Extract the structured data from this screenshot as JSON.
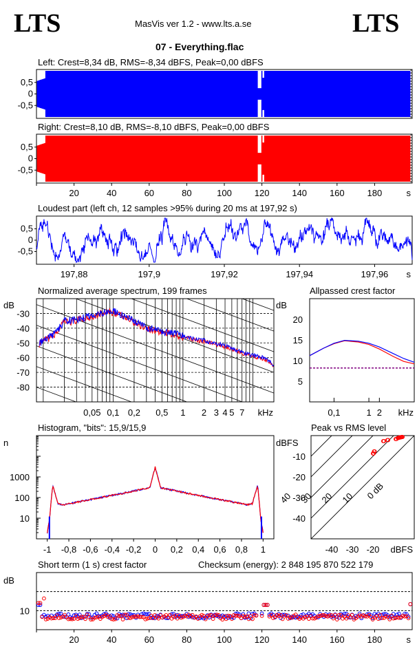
{
  "header": {
    "logo_left": "LTS",
    "logo_right": "LTS",
    "app_title": "MasVis ver 1.2 - www.lts.a.se",
    "file_title": "07 - Everything.flac"
  },
  "colors": {
    "left": "#0000ff",
    "right": "#ff0000",
    "purple": "#800080"
  },
  "left_channel": {
    "title": "Left: Crest=8,34 dB, RMS=-8,34 dBFS, Peak=0,00 dBFS",
    "y_ticks": [
      "0,5",
      "0",
      "-0,5"
    ],
    "chart_data": {
      "type": "area",
      "x_range": [
        0,
        200
      ],
      "ylim": [
        -1,
        1
      ],
      "amplitude": 1.0,
      "fade_in_end": 5,
      "gap": [
        117.5,
        120
      ],
      "end": 199
    }
  },
  "right_channel": {
    "title": "Right: Crest=8,10 dB, RMS=-8,10 dBFS, Peak=0,00 dBFS",
    "y_ticks": [
      "0,5",
      "0",
      "-0,5"
    ],
    "x_ticks": [
      "20",
      "40",
      "60",
      "80",
      "100",
      "120",
      "140",
      "160",
      "180"
    ],
    "x_unit": "s",
    "chart_data": {
      "type": "area",
      "x_range": [
        0,
        200
      ],
      "ylim": [
        -1,
        1
      ],
      "amplitude": 1.0,
      "fade_in_end": 5,
      "gap": [
        117.5,
        120
      ],
      "end": 199
    }
  },
  "loudest": {
    "title": "Loudest part (left  ch, 12 samples >95% during 20 ms at 197,92 s)",
    "y_ticks": [
      "0,5",
      "0",
      "-0,5"
    ],
    "x_ticks": [
      "197,88",
      "197,9",
      "197,92",
      "197,94",
      "197,96"
    ],
    "x_unit": "s",
    "chart_data": {
      "type": "line",
      "x_range": [
        197.87,
        197.97
      ],
      "ylim": [
        -1,
        1
      ]
    }
  },
  "spectrum": {
    "title": "Normalized average spectrum, 199 frames",
    "y_unit": "dB",
    "y_ticks": [
      "-30",
      "-40",
      "-50",
      "-60",
      "-70",
      "-80"
    ],
    "x_ticks": [
      "0,05",
      "0,1",
      "0,2",
      "0,5",
      "1",
      "2",
      "3",
      "4",
      "5",
      "7"
    ],
    "x_unit": "kHz",
    "chart_data": {
      "type": "line",
      "xscale": "log",
      "ylim": [
        -90,
        -20
      ],
      "series": [
        {
          "x": [
            0.008,
            0.015,
            0.02,
            0.03,
            0.05,
            0.07,
            0.1,
            0.15,
            0.2,
            0.3,
            0.5,
            0.7,
            1,
            1.5,
            2,
            3,
            5,
            7,
            10,
            15,
            20
          ],
          "y": [
            -52,
            -44,
            -36,
            -35,
            -32,
            -30,
            -29,
            -33,
            -36,
            -40,
            -43,
            -44,
            -46,
            -48,
            -49,
            -51,
            -54,
            -57,
            -59,
            -61,
            -66
          ]
        }
      ]
    }
  },
  "allpass": {
    "title": "Allpassed crest factor",
    "y_unit": "dB",
    "y_ticks": [
      "20",
      "15",
      "10",
      "5"
    ],
    "x_ticks": [
      "0,1",
      "1",
      "2"
    ],
    "x_unit": "kHz",
    "chart_data": {
      "type": "line",
      "xscale": "log",
      "ylim": [
        0,
        25
      ],
      "x": [
        0.02,
        0.05,
        0.1,
        0.2,
        0.5,
        1,
        2,
        5,
        10,
        20
      ],
      "series": [
        {
          "name": "",
          "values": [
            11.2,
            13,
            14.1,
            14.8,
            14.5,
            13.9,
            12.8,
            11,
            9.8,
            9.2
          ]
        },
        {
          "name": "",
          "values": [
            11.2,
            13,
            14.2,
            14.9,
            14.7,
            14.2,
            13.3,
            11.7,
            10.5,
            9.6
          ]
        }
      ],
      "reference_db": 8.2
    }
  },
  "histogram": {
    "title": "Histogram, \"bits\": 15,9/15,9",
    "y_unit": "n",
    "y_ticks": [
      "1000",
      "100",
      "10"
    ],
    "x_ticks": [
      "-1",
      "-0,8",
      "-0,6",
      "-0,4",
      "-0,2",
      "0",
      "0,2",
      "0,4",
      "0,6",
      "0,8",
      "1"
    ],
    "chart_data": {
      "type": "line",
      "yscale": "log",
      "xlim": [
        -1.1,
        1.1
      ],
      "ylim": [
        1,
        100000
      ],
      "x": [
        -1,
        -0.98,
        -0.95,
        -0.9,
        -0.85,
        -0.6,
        -0.3,
        -0.05,
        0,
        0.05,
        0.3,
        0.6,
        0.85,
        0.9,
        0.95,
        0.98,
        1
      ],
      "y": [
        2,
        8,
        400,
        50,
        45,
        80,
        160,
        300,
        3000,
        300,
        160,
        80,
        45,
        50,
        400,
        8,
        2
      ]
    }
  },
  "peak_rms": {
    "title": "Peak vs RMS level",
    "y_unit": "dBFS",
    "y_ticks": [
      "-10",
      "-20",
      "-30",
      "-40"
    ],
    "x_ticks": [
      "-40",
      "-30",
      "-20"
    ],
    "x_unit": "dBFS",
    "diag_labels": [
      "40",
      "30",
      "20",
      "10",
      "0 dB"
    ],
    "chart_data": {
      "type": "scatter",
      "xlim": [
        -50,
        0
      ],
      "ylim": [
        -50,
        0
      ],
      "x": [
        -20,
        -19.5,
        -15,
        -13,
        -9,
        -8,
        -7.5,
        -7,
        -6.5,
        -6
      ],
      "y": [
        -8,
        -7,
        -2,
        -1.5,
        -1,
        -0.5,
        -0.3,
        -0.2,
        -0.1,
        0
      ]
    }
  },
  "short_term": {
    "title": "Short term (1 s) crest factor",
    "checksum": "Checksum (energy):  2 848 195 870 522 179",
    "y_unit": "dB",
    "y_ticks": [
      "10"
    ],
    "x_ticks": [
      "20",
      "40",
      "60",
      "80",
      "100",
      "120",
      "140",
      "160",
      "180"
    ],
    "x_unit": "s",
    "chart_data": {
      "type": "scatter",
      "xlim": [
        0,
        200
      ],
      "ylim": [
        5,
        20
      ],
      "gap": [
        117.5,
        120
      ],
      "series": [
        {
          "name": "",
          "base": 8.6
        },
        {
          "name": "",
          "base": 8.3
        }
      ]
    }
  }
}
